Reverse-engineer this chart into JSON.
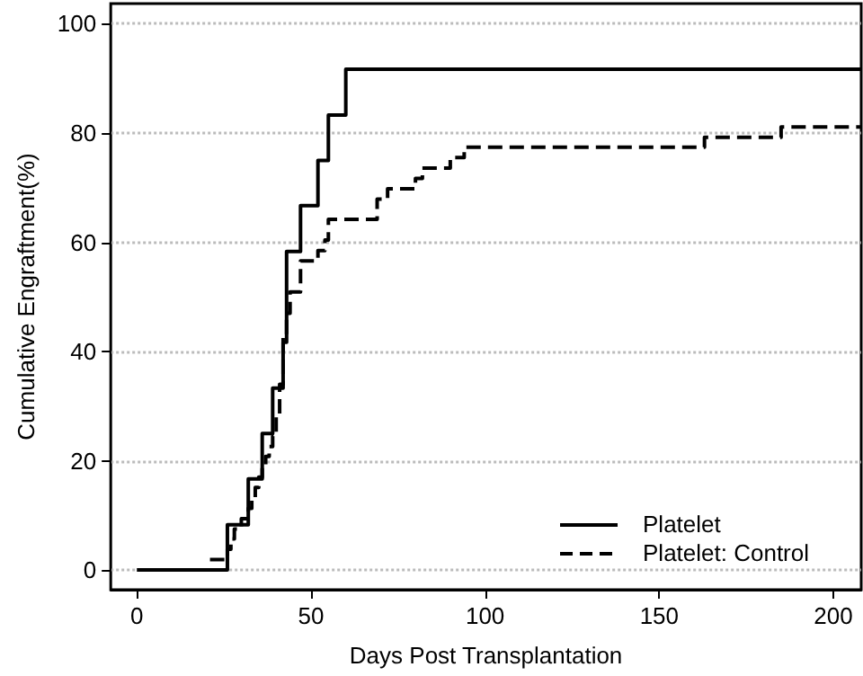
{
  "chart_data": {
    "type": "step",
    "xlabel": "Days Post Transplantation",
    "ylabel": "Cumulative Engraftment(%)",
    "xlim": [
      -7.5,
      208
    ],
    "ylim": [
      -3.6,
      103.7
    ],
    "xticks": [
      0,
      50,
      100,
      150,
      200
    ],
    "yticks": [
      0,
      20,
      40,
      60,
      80,
      100
    ],
    "grid": "y",
    "legend": "bottom right",
    "marker": "none",
    "series": [
      {
        "name": "Platelet",
        "color": "#000000",
        "line_style": "solid",
        "x": [
          0,
          26,
          32,
          36,
          39,
          42,
          43,
          47,
          52,
          55,
          60,
          208
        ],
        "values": [
          0,
          8.3,
          16.7,
          25,
          33.3,
          41.7,
          58.3,
          66.7,
          75,
          83.3,
          91.7,
          91.7
        ]
      },
      {
        "name": "Platelet: Control",
        "color": "#000000",
        "line_style": "dashed",
        "x": [
          21,
          26,
          27,
          28,
          30,
          32,
          33,
          34,
          35,
          36,
          37,
          38,
          39,
          40,
          41,
          42,
          43,
          44,
          47,
          52,
          54,
          55,
          69,
          72,
          80,
          82,
          90,
          94,
          163,
          185,
          208
        ],
        "values": [
          1.9,
          3.8,
          5.7,
          7.5,
          9.4,
          11.3,
          13.2,
          15.1,
          17,
          18.9,
          20.8,
          22.6,
          24.5,
          28.3,
          34,
          43,
          47,
          50.9,
          56.6,
          58.5,
          60.4,
          64.2,
          67.9,
          69.8,
          71.7,
          73.6,
          75.5,
          77.4,
          79.2,
          81.1,
          81.1
        ]
      }
    ]
  }
}
